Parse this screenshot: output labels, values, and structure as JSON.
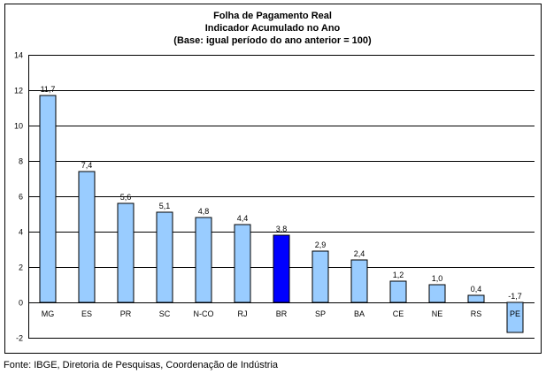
{
  "chart_data": {
    "type": "bar",
    "title": [
      "Folha de Pagamento Real",
      "Indicador Acumulado no Ano",
      "(Base: igual período do ano anterior = 100)"
    ],
    "categories": [
      "MG",
      "ES",
      "PR",
      "SC",
      "N-CO",
      "RJ",
      "BR",
      "SP",
      "BA",
      "CE",
      "NE",
      "RS",
      "PE"
    ],
    "values": [
      11.7,
      7.4,
      5.6,
      5.1,
      4.8,
      4.4,
      3.8,
      2.9,
      2.4,
      1.2,
      1.0,
      0.4,
      -1.7
    ],
    "value_labels": [
      "11,7",
      "7,4",
      "5,6",
      "5,1",
      "4,8",
      "4,4",
      "3,8",
      "2,9",
      "2,4",
      "1,2",
      "1,0",
      "0,4",
      "-1,7"
    ],
    "highlight_category": "BR",
    "ylim": [
      -2,
      14
    ],
    "yticks": [
      -2,
      0,
      2,
      4,
      6,
      8,
      10,
      12,
      14
    ],
    "ytick_labels": [
      "-2",
      "0",
      "2",
      "4",
      "6",
      "8",
      "10",
      "12",
      "14"
    ],
    "xlabel": "",
    "ylabel": "",
    "grid": true,
    "colors": {
      "bar": "#99ccff",
      "highlight": "#0000ff",
      "border": "#000000",
      "grid": "#000000"
    }
  },
  "source_note": "Fonte: IBGE, Diretoria de Pesquisas, Coordenação de Indústria"
}
